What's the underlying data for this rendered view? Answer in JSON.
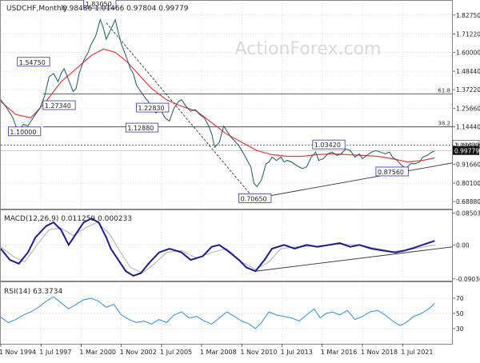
{
  "chart_data": {
    "type": "line",
    "instrument": "USDCHF,Monthly",
    "ohlc_text": "0.98486 1.01466 0.97804 0.99779",
    "watermark": "ActionForex.com",
    "x_range": [
      1994.0,
      2024.0
    ],
    "x_ticks": [
      {
        "x": 1994.0,
        "label": "1 Nov 1994"
      },
      {
        "x": 1996.67,
        "label": "1 Jul 1997"
      },
      {
        "x": 1999.33,
        "label": "1 Mar 2000"
      },
      {
        "x": 2002.0,
        "label": "1 Nov 2002"
      },
      {
        "x": 2004.67,
        "label": "1 Jul 2005"
      },
      {
        "x": 2007.33,
        "label": "1 Mar 2008"
      },
      {
        "x": 2010.0,
        "label": "1 Nov 2010"
      },
      {
        "x": 2012.67,
        "label": "1 Jul 2013"
      },
      {
        "x": 2015.33,
        "label": "1 Mar 2016"
      },
      {
        "x": 2018.0,
        "label": "1 Nov 2018"
      },
      {
        "x": 2020.67,
        "label": "1 Jul 2021"
      }
    ],
    "price_panel": {
      "y_range": [
        0.64,
        1.9
      ],
      "y_ticks": [
        "1.82750",
        "1.71220",
        "1.60000",
        "1.48440",
        "1.37220",
        "1.25660",
        "1.14440",
        "1.02880",
        "0.91660",
        "0.80100",
        "0.68880"
      ],
      "price_series": [
        [
          1994.0,
          1.31
        ],
        [
          1994.4,
          1.26
        ],
        [
          1994.8,
          1.2
        ],
        [
          1995.0,
          1.15
        ],
        [
          1995.2,
          1.12
        ],
        [
          1995.5,
          1.16
        ],
        [
          1995.8,
          1.15
        ],
        [
          1996.0,
          1.18
        ],
        [
          1996.3,
          1.22
        ],
        [
          1996.6,
          1.26
        ],
        [
          1996.9,
          1.33
        ],
        [
          1997.2,
          1.45
        ],
        [
          1997.5,
          1.47
        ],
        [
          1997.8,
          1.42
        ],
        [
          1998.0,
          1.47
        ],
        [
          1998.2,
          1.5
        ],
        [
          1998.5,
          1.43
        ],
        [
          1998.8,
          1.36
        ],
        [
          1999.0,
          1.38
        ],
        [
          1999.2,
          1.47
        ],
        [
          1999.5,
          1.55
        ],
        [
          1999.8,
          1.6
        ],
        [
          2000.0,
          1.65
        ],
        [
          2000.3,
          1.7
        ],
        [
          2000.6,
          1.8
        ],
        [
          2000.8,
          1.75
        ],
        [
          2001.0,
          1.68
        ],
        [
          2001.3,
          1.74
        ],
        [
          2001.6,
          1.8
        ],
        [
          2001.8,
          1.72
        ],
        [
          2002.0,
          1.65
        ],
        [
          2002.3,
          1.58
        ],
        [
          2002.6,
          1.5
        ],
        [
          2002.8,
          1.47
        ],
        [
          2003.0,
          1.4
        ],
        [
          2003.3,
          1.36
        ],
        [
          2003.6,
          1.32
        ],
        [
          2003.8,
          1.3
        ],
        [
          2004.0,
          1.25
        ],
        [
          2004.3,
          1.23
        ],
        [
          2004.6,
          1.25
        ],
        [
          2004.9,
          1.2
        ],
        [
          2005.2,
          1.18
        ],
        [
          2005.5,
          1.26
        ],
        [
          2005.8,
          1.3
        ],
        [
          2006.0,
          1.31
        ],
        [
          2006.3,
          1.27
        ],
        [
          2006.6,
          1.24
        ],
        [
          2006.9,
          1.25
        ],
        [
          2007.2,
          1.22
        ],
        [
          2007.5,
          1.2
        ],
        [
          2007.8,
          1.15
        ],
        [
          2008.0,
          1.1
        ],
        [
          2008.2,
          1.02
        ],
        [
          2008.5,
          1.05
        ],
        [
          2008.8,
          1.15
        ],
        [
          2009.0,
          1.12
        ],
        [
          2009.3,
          1.08
        ],
        [
          2009.6,
          1.05
        ],
        [
          2009.8,
          1.03
        ],
        [
          2010.0,
          1.0
        ],
        [
          2010.3,
          0.95
        ],
        [
          2010.6,
          0.9
        ],
        [
          2010.8,
          0.8
        ],
        [
          2011.0,
          0.78
        ],
        [
          2011.3,
          0.82
        ],
        [
          2011.6,
          0.92
        ],
        [
          2011.8,
          0.93
        ],
        [
          2012.0,
          0.96
        ],
        [
          2012.3,
          0.94
        ],
        [
          2012.6,
          0.96
        ],
        [
          2012.8,
          0.93
        ],
        [
          2013.0,
          0.94
        ],
        [
          2013.3,
          0.93
        ],
        [
          2013.6,
          0.91
        ],
        [
          2013.8,
          0.9
        ],
        [
          2014.0,
          0.89
        ],
        [
          2014.3,
          0.9
        ],
        [
          2014.6,
          0.96
        ],
        [
          2014.9,
          0.99
        ],
        [
          2015.1,
          0.94
        ],
        [
          2015.4,
          0.95
        ],
        [
          2015.7,
          0.98
        ],
        [
          2016.0,
          0.99
        ],
        [
          2016.3,
          0.97
        ],
        [
          2016.6,
          0.98
        ],
        [
          2016.9,
          1.01
        ],
        [
          2017.2,
          1.0
        ],
        [
          2017.5,
          0.96
        ],
        [
          2017.8,
          0.98
        ],
        [
          2018.0,
          0.95
        ],
        [
          2018.3,
          0.97
        ],
        [
          2018.6,
          0.99
        ],
        [
          2018.9,
          1.0
        ],
        [
          2019.2,
          0.99
        ],
        [
          2019.5,
          0.98
        ],
        [
          2019.8,
          0.99
        ],
        [
          2020.0,
          0.96
        ],
        [
          2020.3,
          0.94
        ],
        [
          2020.6,
          0.91
        ],
        [
          2020.9,
          0.89
        ],
        [
          2021.2,
          0.92
        ],
        [
          2021.5,
          0.92
        ],
        [
          2021.8,
          0.93
        ],
        [
          2022.0,
          0.96
        ],
        [
          2022.3,
          0.97
        ],
        [
          2022.6,
          0.99
        ],
        [
          2022.8,
          0.998
        ]
      ],
      "ma_series": [
        [
          1994.0,
          1.3
        ],
        [
          1995.0,
          1.22
        ],
        [
          1996.0,
          1.2
        ],
        [
          1997.0,
          1.3
        ],
        [
          1998.0,
          1.42
        ],
        [
          1999.0,
          1.5
        ],
        [
          2000.0,
          1.58
        ],
        [
          2000.8,
          1.62
        ],
        [
          2001.6,
          1.6
        ],
        [
          2002.4,
          1.54
        ],
        [
          2003.2,
          1.46
        ],
        [
          2004.0,
          1.38
        ],
        [
          2005.0,
          1.31
        ],
        [
          2006.0,
          1.27
        ],
        [
          2007.0,
          1.24
        ],
        [
          2008.0,
          1.17
        ],
        [
          2009.0,
          1.1
        ],
        [
          2010.0,
          1.05
        ],
        [
          2011.0,
          1.0
        ],
        [
          2012.0,
          0.975
        ],
        [
          2013.0,
          0.965
        ],
        [
          2014.0,
          0.965
        ],
        [
          2015.0,
          0.975
        ],
        [
          2016.0,
          0.98
        ],
        [
          2017.0,
          0.975
        ],
        [
          2018.0,
          0.97
        ],
        [
          2019.0,
          0.965
        ],
        [
          2020.0,
          0.95
        ],
        [
          2021.0,
          0.93
        ],
        [
          2022.0,
          0.94
        ],
        [
          2022.8,
          0.955
        ]
      ],
      "hlines": [
        {
          "y": 1.345,
          "label": "61.8"
        },
        {
          "y": 1.1445,
          "label": "38.2"
        }
      ],
      "dashed_line": 1.0342,
      "trendlines": [
        {
          "from": [
            2010.8,
            0.7065
          ],
          "to": [
            2024.0,
            0.925
          ]
        },
        {
          "from": [
            2001.0,
            1.78
          ],
          "to": [
            2010.8,
            0.7065
          ]
        }
      ],
      "labels": [
        {
          "text": "1.83050",
          "x": 1999.5,
          "y": 1.885
        },
        {
          "text": "1.54750",
          "x": 1995.1,
          "y": 1.53
        },
        {
          "text": "1.27340",
          "x": 1996.8,
          "y": 1.265
        },
        {
          "text": "1.10000",
          "x": 1994.5,
          "y": 1.105
        },
        {
          "text": "1.22830",
          "x": 2003.0,
          "y": 1.25
        },
        {
          "text": "1.12880",
          "x": 2002.3,
          "y": 1.128
        },
        {
          "text": "1.03420",
          "x": 2014.7,
          "y": 1.025
        },
        {
          "text": "0.87560",
          "x": 2018.9,
          "y": 0.86
        },
        {
          "text": "0.70650",
          "x": 2009.8,
          "y": 0.697
        }
      ],
      "current": {
        "text": "0.99779",
        "value": 0.99779
      },
      "right_tag": {
        "text": "1.03420",
        "value": 1.0342
      }
    },
    "macd_panel": {
      "label": "MACD(12,26,9) 0.011259 0.000233",
      "y_ticks": [
        "0.085034",
        "0.00",
        "-0.090302"
      ],
      "y_range": [
        -0.095,
        0.09
      ],
      "macd_series": [
        [
          1994.0,
          -0.01
        ],
        [
          1994.6,
          -0.04
        ],
        [
          1995.2,
          -0.05
        ],
        [
          1995.8,
          -0.02
        ],
        [
          1996.3,
          0.02
        ],
        [
          1997.0,
          0.05
        ],
        [
          1997.5,
          0.06
        ],
        [
          1998.0,
          0.04
        ],
        [
          1998.5,
          0.0
        ],
        [
          1999.0,
          0.03
        ],
        [
          1999.5,
          0.06
        ],
        [
          2000.0,
          0.07
        ],
        [
          2000.5,
          0.06
        ],
        [
          2001.0,
          0.02
        ],
        [
          2001.3,
          -0.01
        ],
        [
          2001.8,
          -0.04
        ],
        [
          2002.3,
          -0.07
        ],
        [
          2002.8,
          -0.082
        ],
        [
          2003.3,
          -0.075
        ],
        [
          2003.8,
          -0.05
        ],
        [
          2004.5,
          -0.02
        ],
        [
          2005.2,
          -0.01
        ],
        [
          2006.0,
          -0.02
        ],
        [
          2006.6,
          -0.04
        ],
        [
          2007.4,
          -0.03
        ],
        [
          2008.0,
          -0.005
        ],
        [
          2008.5,
          0.0
        ],
        [
          2009.2,
          -0.02
        ],
        [
          2009.8,
          -0.04
        ],
        [
          2010.3,
          -0.06
        ],
        [
          2010.9,
          -0.07
        ],
        [
          2011.5,
          -0.04
        ],
        [
          2012.0,
          -0.01
        ],
        [
          2012.8,
          0.0
        ],
        [
          2013.5,
          -0.01
        ],
        [
          2014.3,
          0.0
        ],
        [
          2015.0,
          -0.005
        ],
        [
          2015.8,
          0.0
        ],
        [
          2016.5,
          0.005
        ],
        [
          2017.2,
          -0.005
        ],
        [
          2017.8,
          0.0
        ],
        [
          2018.6,
          -0.01
        ],
        [
          2019.4,
          -0.015
        ],
        [
          2020.2,
          -0.02
        ],
        [
          2020.8,
          -0.015
        ],
        [
          2021.4,
          -0.008
        ],
        [
          2022.0,
          0.0
        ],
        [
          2022.8,
          0.011
        ]
      ],
      "signal_series": [
        [
          1994.0,
          -0.005
        ],
        [
          1994.8,
          -0.03
        ],
        [
          1995.6,
          -0.045
        ],
        [
          1996.4,
          0.0
        ],
        [
          1997.2,
          0.04
        ],
        [
          1998.0,
          0.045
        ],
        [
          1998.8,
          0.025
        ],
        [
          1999.6,
          0.045
        ],
        [
          2000.4,
          0.06
        ],
        [
          2001.2,
          0.03
        ],
        [
          2001.8,
          -0.01
        ],
        [
          2002.6,
          -0.06
        ],
        [
          2003.4,
          -0.075
        ],
        [
          2004.2,
          -0.05
        ],
        [
          2005.0,
          -0.02
        ],
        [
          2006.0,
          -0.015
        ],
        [
          2007.0,
          -0.035
        ],
        [
          2008.0,
          -0.02
        ],
        [
          2009.0,
          -0.01
        ],
        [
          2010.0,
          -0.045
        ],
        [
          2010.9,
          -0.065
        ],
        [
          2011.8,
          -0.045
        ],
        [
          2012.6,
          -0.01
        ],
        [
          2013.6,
          -0.005
        ],
        [
          2015.0,
          -0.003
        ],
        [
          2016.4,
          0.002
        ],
        [
          2017.8,
          0.0
        ],
        [
          2019.0,
          -0.01
        ],
        [
          2020.0,
          -0.018
        ],
        [
          2021.2,
          -0.012
        ],
        [
          2022.8,
          0.0002
        ]
      ],
      "trendline": {
        "from": [
          2010.9,
          -0.07
        ],
        "to": [
          2024.0,
          -0.005
        ]
      }
    },
    "rsi_panel": {
      "label": "RSI(14) 63.3734",
      "y_ticks": [
        "70",
        "50",
        "30"
      ],
      "y_range": [
        10,
        90
      ],
      "rsi_series": [
        [
          1994.0,
          45
        ],
        [
          1994.5,
          38
        ],
        [
          1995.0,
          42
        ],
        [
          1995.5,
          48
        ],
        [
          1996.0,
          52
        ],
        [
          1996.5,
          58
        ],
        [
          1997.0,
          66
        ],
        [
          1997.5,
          72
        ],
        [
          1998.0,
          64
        ],
        [
          1998.5,
          56
        ],
        [
          1999.0,
          62
        ],
        [
          1999.5,
          68
        ],
        [
          2000.0,
          70
        ],
        [
          2000.5,
          66
        ],
        [
          2001.0,
          58
        ],
        [
          2001.5,
          62
        ],
        [
          2002.0,
          48
        ],
        [
          2002.5,
          42
        ],
        [
          2003.0,
          38
        ],
        [
          2003.5,
          40
        ],
        [
          2004.0,
          36
        ],
        [
          2004.5,
          42
        ],
        [
          2005.0,
          38
        ],
        [
          2005.5,
          48
        ],
        [
          2006.0,
          52
        ],
        [
          2006.5,
          44
        ],
        [
          2007.0,
          46
        ],
        [
          2007.5,
          40
        ],
        [
          2008.0,
          36
        ],
        [
          2008.5,
          44
        ],
        [
          2009.0,
          52
        ],
        [
          2009.5,
          46
        ],
        [
          2010.0,
          40
        ],
        [
          2010.5,
          36
        ],
        [
          2010.9,
          30
        ],
        [
          2011.3,
          38
        ],
        [
          2011.8,
          52
        ],
        [
          2012.3,
          48
        ],
        [
          2012.8,
          46
        ],
        [
          2013.3,
          44
        ],
        [
          2013.8,
          40
        ],
        [
          2014.3,
          48
        ],
        [
          2014.8,
          56
        ],
        [
          2015.2,
          44
        ],
        [
          2015.6,
          50
        ],
        [
          2016.0,
          52
        ],
        [
          2016.5,
          48
        ],
        [
          2017.0,
          54
        ],
        [
          2017.5,
          42
        ],
        [
          2018.0,
          46
        ],
        [
          2018.5,
          52
        ],
        [
          2019.0,
          54
        ],
        [
          2019.5,
          48
        ],
        [
          2020.0,
          40
        ],
        [
          2020.5,
          34
        ],
        [
          2020.9,
          38
        ],
        [
          2021.4,
          46
        ],
        [
          2021.9,
          50
        ],
        [
          2022.4,
          56
        ],
        [
          2022.8,
          63.4
        ]
      ]
    }
  }
}
